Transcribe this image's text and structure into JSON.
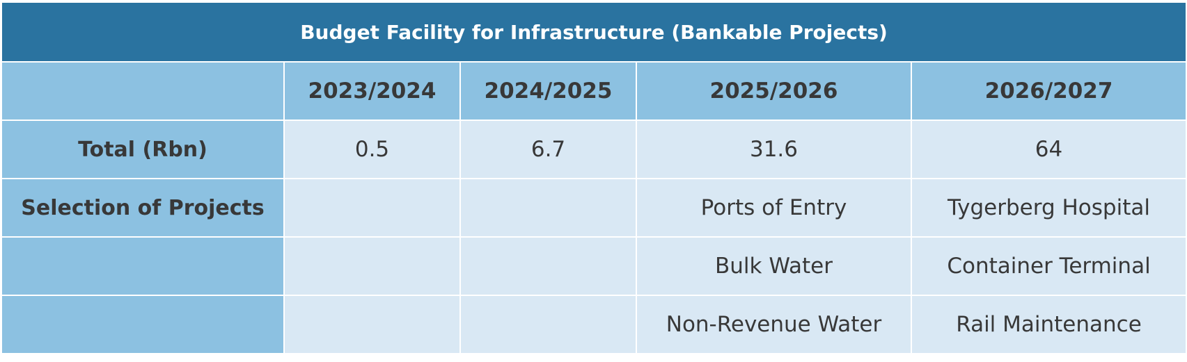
{
  "chart_data": {
    "type": "table",
    "title": "Budget Facility for Infrastructure (Bankable Projects)",
    "columns": [
      "",
      "2023/2024",
      "2024/2025",
      "2025/2026",
      "2026/2027"
    ],
    "rows": [
      {
        "label": "Total (Rbn)",
        "cells": [
          "0.5",
          "6.7",
          "31.6",
          "64"
        ]
      },
      {
        "label": "Selection of Projects",
        "cells": [
          "",
          "",
          "Ports of Entry",
          "Tygerberg Hospital"
        ]
      },
      {
        "label": "",
        "cells": [
          "",
          "",
          "Bulk Water",
          "Container Terminal"
        ]
      },
      {
        "label": "",
        "cells": [
          "",
          "",
          "Non-Revenue Water",
          "Rail Maintenance"
        ]
      }
    ],
    "totals_rbn": [
      {
        "period": "2023/2024",
        "value": 0.5
      },
      {
        "period": "2024/2025",
        "value": 6.7
      },
      {
        "period": "2025/2026",
        "value": 31.6
      },
      {
        "period": "2026/2027",
        "value": 64
      }
    ]
  },
  "colors": {
    "title_bg": "#2a73a0",
    "header_bg": "#8cc1e1",
    "cell_bg": "#d9e8f4",
    "text": "#383838"
  }
}
